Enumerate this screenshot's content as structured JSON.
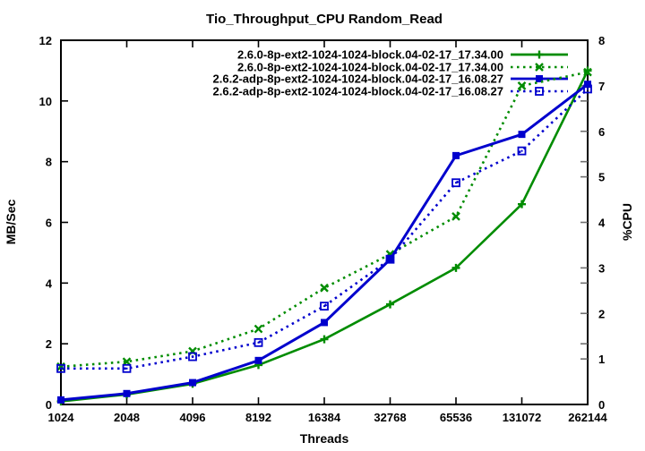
{
  "window": {
    "title": "Tio_Throughput_CPU Random_Read"
  },
  "colors": {
    "green": "#008c00",
    "blue": "#0000cd",
    "axis": "#000000",
    "right_tick": "#707070",
    "background": "#ffffff"
  },
  "chart_data": {
    "type": "line",
    "title": "Tio_Throughput_CPU Random_Read",
    "xlabel": "Threads",
    "ylabel_left": "MB/Sec",
    "ylabel_right": "%CPU",
    "x_scale": "log2",
    "categories": [
      1024,
      2048,
      4096,
      8192,
      16384,
      32768,
      65536,
      131072,
      262144
    ],
    "x_tick_labels": [
      "1024",
      "2048",
      "4096",
      "8192",
      "16384",
      "32768",
      "65536",
      "131072",
      "262144"
    ],
    "ylim_left": [
      0,
      12
    ],
    "yticks_left": [
      0,
      2,
      4,
      6,
      8,
      10,
      12
    ],
    "ylim_right": [
      0,
      8
    ],
    "yticks_right": [
      0,
      1,
      2,
      3,
      4,
      5,
      6,
      7,
      8
    ],
    "grid": false,
    "legend_position": "top-right-inside",
    "series": [
      {
        "name": "2.6.0-8p-ext2-1024-1024-block.04-02-17_17.34.00",
        "axis": "left",
        "unit": "MB/Sec",
        "color": "green",
        "line_style": "solid",
        "marker": "plus",
        "values": [
          0.1,
          0.33,
          0.68,
          1.3,
          2.15,
          3.3,
          4.5,
          6.6,
          11.0
        ]
      },
      {
        "name": "2.6.0-8p-ext2-1024-1024-block.04-02-17_17.34.00",
        "axis": "right",
        "unit": "%CPU",
        "color": "green",
        "line_style": "dotted",
        "marker": "cross",
        "values": [
          0.83,
          0.94,
          1.17,
          1.66,
          2.56,
          3.3,
          4.13,
          7.0,
          7.3
        ]
      },
      {
        "name": "2.6.2-adp-8p-ext2-1024-1024-block.04-02-17_16.08.27",
        "axis": "left",
        "unit": "MB/Sec",
        "color": "blue",
        "line_style": "solid",
        "marker": "square-filled",
        "values": [
          0.15,
          0.36,
          0.72,
          1.45,
          2.7,
          4.78,
          8.2,
          8.9,
          10.55
        ]
      },
      {
        "name": "2.6.2-adp-8p-ext2-1024-1024-block.04-02-17_16.08.27",
        "axis": "right",
        "unit": "%CPU",
        "color": "blue",
        "line_style": "dotted",
        "marker": "square-open",
        "values": [
          0.79,
          0.79,
          1.05,
          1.36,
          2.16,
          3.19,
          4.87,
          5.57,
          6.93
        ]
      }
    ]
  }
}
